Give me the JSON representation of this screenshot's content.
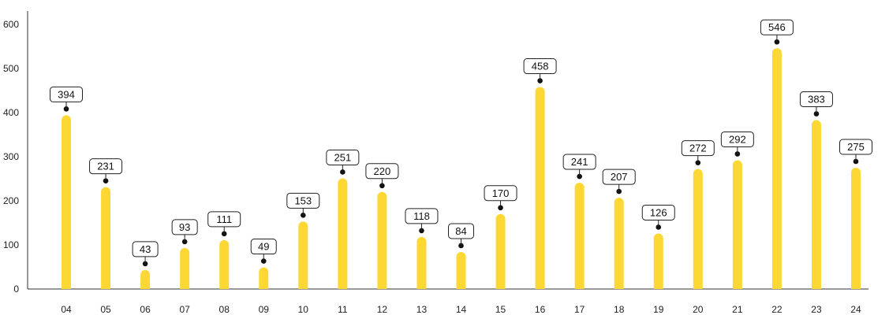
{
  "chart_data": {
    "type": "bar",
    "title": "",
    "xlabel": "",
    "ylabel": "",
    "categories": [
      "04",
      "05",
      "06",
      "07",
      "08",
      "09",
      "10",
      "11",
      "12",
      "13",
      "14",
      "15",
      "16",
      "17",
      "18",
      "19",
      "20",
      "21",
      "22",
      "23",
      "24"
    ],
    "values": [
      394,
      231,
      43,
      93,
      111,
      49,
      153,
      251,
      220,
      118,
      84,
      170,
      458,
      241,
      207,
      126,
      272,
      292,
      546,
      383,
      275
    ],
    "ylim": [
      0,
      600
    ],
    "yticks": [
      0,
      100,
      200,
      300,
      400,
      500,
      600
    ],
    "grid": false,
    "legend": "none",
    "bar_color": "#FDD835",
    "marker_color": "#111111"
  }
}
